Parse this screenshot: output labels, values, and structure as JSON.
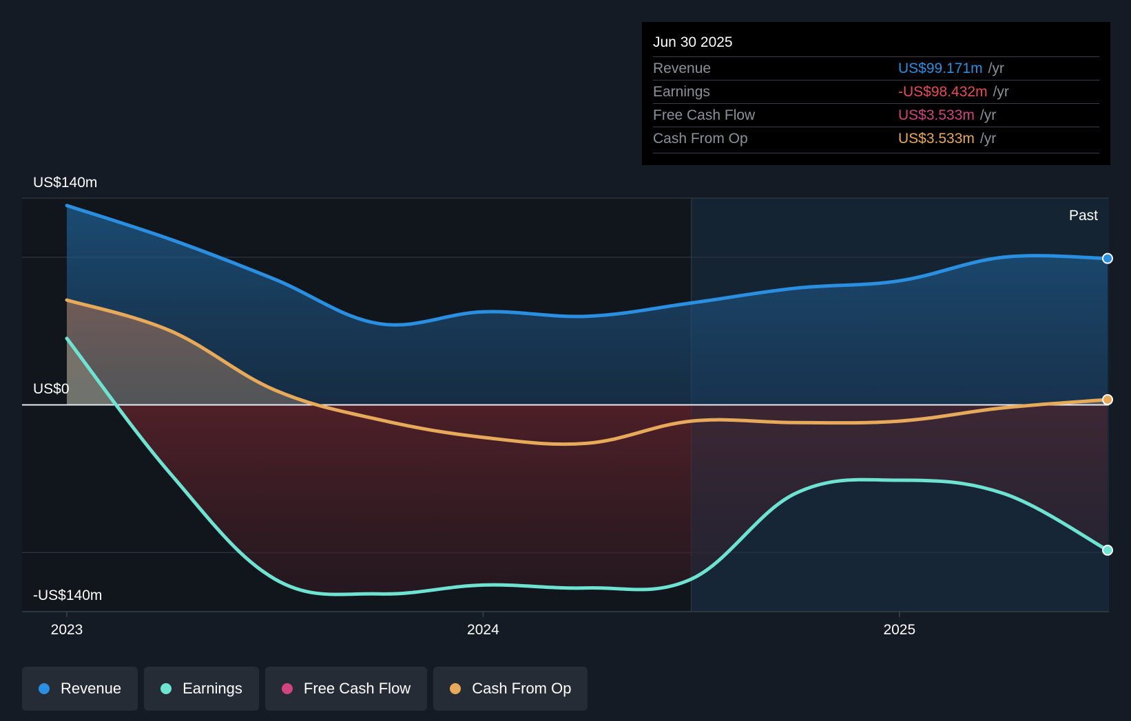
{
  "colors": {
    "revenue": "#2a8fe0",
    "earnings": "#6ee3d2",
    "fcf": "#d0457f",
    "cfo": "#e7aa5a",
    "negative": "#e74c57"
  },
  "tooltip": {
    "date": "Jun 30 2025",
    "rows": [
      {
        "label": "Revenue",
        "value": "US$99.171m",
        "unit": "/yr"
      },
      {
        "label": "Earnings",
        "value": "-US$98.432m",
        "unit": "/yr"
      },
      {
        "label": "Free Cash Flow",
        "value": "US$3.533m",
        "unit": "/yr"
      },
      {
        "label": "Cash From Op",
        "value": "US$3.533m",
        "unit": "/yr"
      }
    ]
  },
  "legend": [
    {
      "label": "Revenue",
      "color_key": "revenue"
    },
    {
      "label": "Earnings",
      "color_key": "earnings"
    },
    {
      "label": "Free Cash Flow",
      "color_key": "fcf"
    },
    {
      "label": "Cash From Op",
      "color_key": "cfo"
    }
  ],
  "chart_data": {
    "type": "area",
    "title": "",
    "xlabel": "",
    "ylabel": "",
    "y_labels": [
      "US$140m",
      "US$0",
      "-US$140m"
    ],
    "x_ticks": [
      {
        "label": "2023",
        "x": 2023.0
      },
      {
        "label": "2024",
        "x": 2024.0
      },
      {
        "label": "2025",
        "x": 2025.0
      }
    ],
    "xlim": [
      2023.0,
      2025.5
    ],
    "ylim": [
      -140,
      140
    ],
    "past_label": "Past",
    "past_region_start": 2024.5,
    "series": [
      {
        "name": "Revenue",
        "color_key": "revenue",
        "x": [
          2023.0,
          2023.25,
          2023.5,
          2023.75,
          2024.0,
          2024.25,
          2024.5,
          2024.75,
          2025.0,
          2025.25,
          2025.5
        ],
        "values": [
          135,
          112,
          85,
          55,
          63,
          60,
          69,
          79,
          84,
          100,
          99.171
        ]
      },
      {
        "name": "Earnings",
        "color_key": "earnings",
        "x": [
          2023.0,
          2023.25,
          2023.5,
          2023.75,
          2024.0,
          2024.25,
          2024.5,
          2024.75,
          2025.0,
          2025.25,
          2025.5
        ],
        "values": [
          45,
          -47,
          -118,
          -128,
          -122,
          -124,
          -118,
          -60,
          -51,
          -60,
          -98.432
        ]
      },
      {
        "name": "Free Cash Flow",
        "color_key": "fcf",
        "x": [
          2023.0,
          2023.25,
          2023.5,
          2023.75,
          2024.0,
          2024.25,
          2024.5,
          2024.75,
          2025.0,
          2025.25,
          2025.5
        ],
        "values": [
          71,
          50,
          10,
          -10,
          -22,
          -26,
          -11,
          -12,
          -11,
          -2,
          3.533
        ]
      },
      {
        "name": "Cash From Op",
        "color_key": "cfo",
        "x": [
          2023.0,
          2023.25,
          2023.5,
          2023.75,
          2024.0,
          2024.25,
          2024.5,
          2024.75,
          2025.0,
          2025.25,
          2025.5
        ],
        "values": [
          71,
          50,
          10,
          -10,
          -22,
          -26,
          -11,
          -12,
          -11,
          -2,
          3.533
        ]
      }
    ]
  }
}
